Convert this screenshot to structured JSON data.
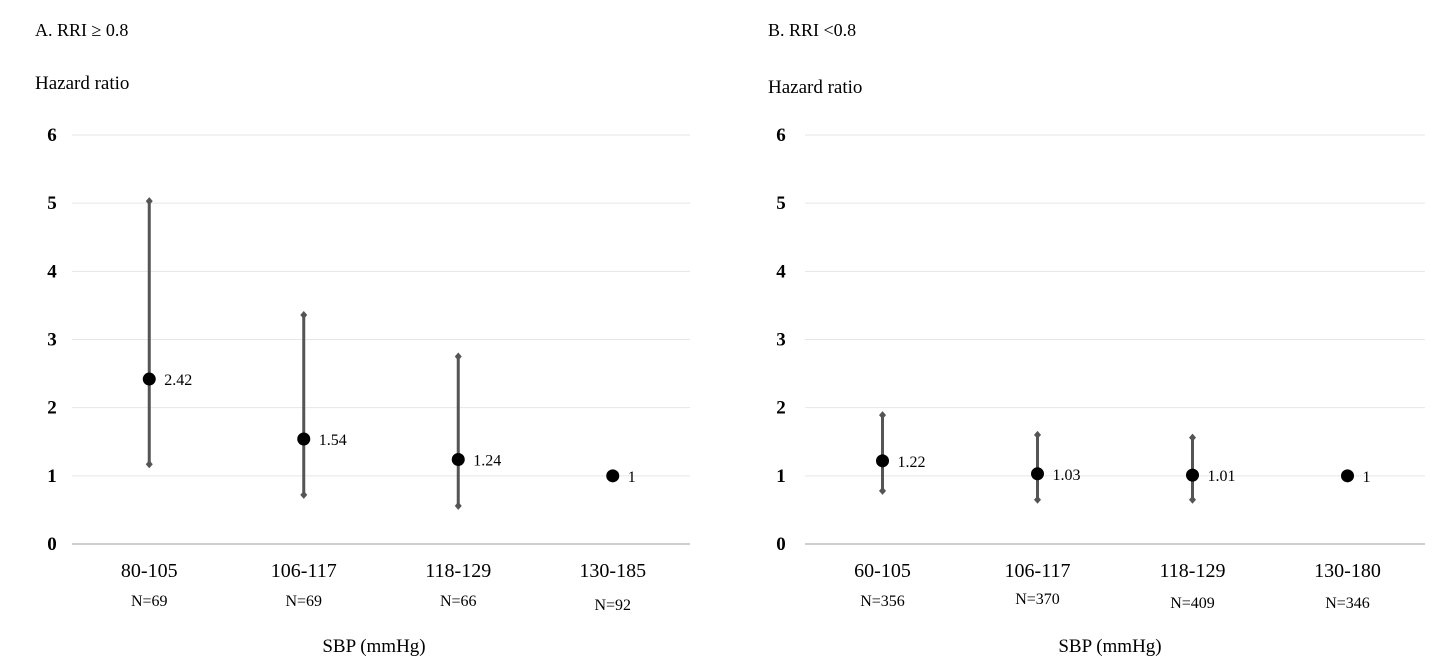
{
  "chart_data": [
    {
      "type": "scatter",
      "title": "A. RRI ≥ 0.8",
      "ylabel": "Hazard ratio",
      "xlabel": "SBP (mmHg)",
      "ylim": [
        0,
        6
      ],
      "yticks": [
        "0",
        "1",
        "2",
        "3",
        "4",
        "5",
        "6"
      ],
      "grid": true,
      "categories": [
        "80-105",
        "106-117",
        "118-129",
        "130-185"
      ],
      "n_labels": [
        "N=69",
        "N=69",
        "N=66",
        "N=92"
      ],
      "values": [
        2.42,
        1.54,
        1.24,
        1
      ],
      "value_labels": [
        "2.42",
        "1.54",
        "1.24",
        "1"
      ],
      "ci_lower": [
        1.17,
        0.72,
        0.56,
        null
      ],
      "ci_upper": [
        5.03,
        3.36,
        2.75,
        null
      ]
    },
    {
      "type": "scatter",
      "title": "B. RRI <0.8",
      "ylabel": "Hazard ratio",
      "xlabel": "SBP (mmHg)",
      "ylim": [
        0,
        6
      ],
      "yticks": [
        "0",
        "1",
        "2",
        "3",
        "4",
        "5",
        "6"
      ],
      "grid": true,
      "categories": [
        "60-105",
        "106-117",
        "118-129",
        "130-180"
      ],
      "n_labels": [
        "N=356",
        "N=370",
        "N=409",
        "N=346"
      ],
      "values": [
        1.22,
        1.03,
        1.01,
        1
      ],
      "value_labels": [
        "1.22",
        "1.03",
        "1.01",
        "1"
      ],
      "ci_lower": [
        0.78,
        0.65,
        0.65,
        null
      ],
      "ci_upper": [
        1.89,
        1.6,
        1.56,
        null
      ]
    }
  ],
  "colors": {
    "marker": "#000000",
    "error_bar": "#555555",
    "grid": "#e6e6e6",
    "axis": "#bfbfbf"
  }
}
